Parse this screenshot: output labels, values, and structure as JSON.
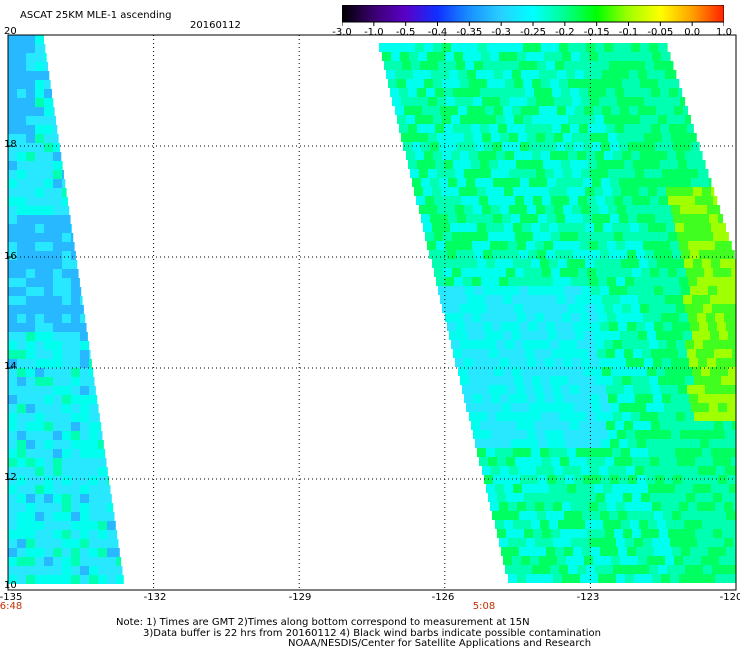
{
  "title": "ASCAT 25KM MLE-1 ascending",
  "date": "20160112",
  "colorbar": {
    "labels": [
      "-3.0",
      "-1.0",
      "-0.5",
      "-0.4",
      "-0.35",
      "-0.3",
      "-0.25",
      "-0.2",
      "-0.15",
      "-0.1",
      "-0.05",
      "0.0",
      "1.0"
    ],
    "colors": [
      "#000000",
      "#3a0070",
      "#5a00c8",
      "#1030ff",
      "#1890ff",
      "#28d0ff",
      "#00ffff",
      "#00ff90",
      "#00ff00",
      "#a0ff00",
      "#ffff00",
      "#ffa000",
      "#ff2000"
    ]
  },
  "axes": {
    "lat_labels": [
      "20",
      "18",
      "16",
      "14",
      "12",
      "10"
    ],
    "lon_labels": [
      "-135",
      "-132",
      "-129",
      "-126",
      "-123",
      "-120"
    ],
    "time_labels": [
      "6:48",
      "5:08"
    ]
  },
  "notes": {
    "line1": "Note: 1) Times are GMT 2)Times along bottom correspond to measurement at 15N",
    "line2": "3)Data buffer is 22 hrs from 20160112 4) Black wind barbs indicate possible contamination",
    "credit": "NOAA/NESDIS/Center for Satellite Applications and Research"
  },
  "map_data": {
    "lat_range": [
      10,
      20
    ],
    "lon_range": [
      -135,
      -120
    ],
    "swaths": [
      {
        "name": "swath-west",
        "time": "6:48"
      },
      {
        "name": "swath-east",
        "time": "5:08"
      }
    ]
  }
}
